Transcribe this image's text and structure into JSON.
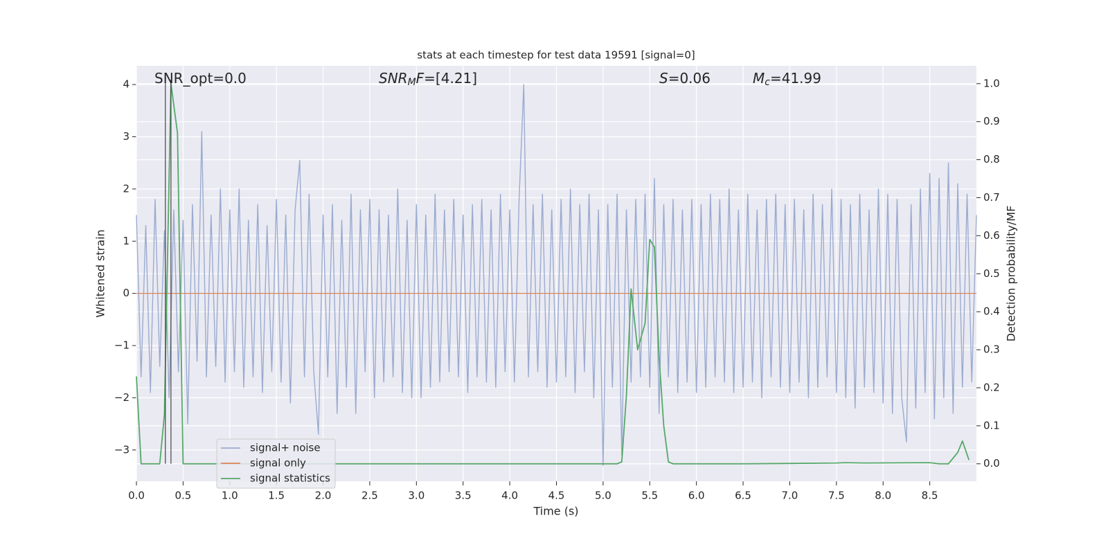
{
  "chart_data": {
    "type": "line",
    "title": "stats at each timestep for test data 19591 [signal=0]",
    "x_label": "Time (s)",
    "y_label": "Whitened strain",
    "y2_label": "Detection probability/MF",
    "annotations": [
      [
        {
          "text": "SNR_opt=0.0"
        }
      ],
      [
        {
          "text": "SNR",
          "italic": true
        },
        {
          "text": "M",
          "italic": true,
          "sub": true
        },
        {
          "text": "F",
          "italic": true
        },
        {
          "text": "=[4.21]"
        }
      ],
      [
        {
          "text": "S",
          "italic": true
        },
        {
          "text": "=0.06"
        }
      ],
      [
        {
          "text": "M",
          "italic": true
        },
        {
          "text": "c",
          "italic": true,
          "sub": true
        },
        {
          "text": "=41.99"
        }
      ]
    ],
    "vlines": [
      0.31,
      0.37
    ],
    "vline_color": "#444444",
    "xlim": [
      0,
      9.0
    ],
    "ylim": [
      -3.6,
      4.36
    ],
    "y2lim": [
      -0.046,
      1.047
    ],
    "xticks": [
      {
        "value": 0,
        "label": "0.0"
      },
      0.5,
      {
        "value": 1,
        "label": "1.0"
      },
      1.5,
      {
        "value": 2,
        "label": "2.0"
      },
      2.5,
      {
        "value": 3,
        "label": "3.0"
      },
      3.5,
      {
        "value": 4,
        "label": "4.0"
      },
      4.5,
      {
        "value": 5,
        "label": "5.0"
      },
      5.5,
      {
        "value": 6,
        "label": "6.0"
      },
      6.5,
      {
        "value": 7,
        "label": "7.0"
      },
      7.5,
      {
        "value": 8,
        "label": "8.0"
      },
      8.5
    ],
    "yticks": [
      {
        "value": -3,
        "label": "−3"
      },
      {
        "value": -2,
        "label": "−2"
      },
      {
        "value": -1,
        "label": "−1"
      },
      0,
      1,
      2,
      3,
      4
    ],
    "y2ticks": [
      {
        "value": 0,
        "label": "0.0"
      },
      0.1,
      0.2,
      0.3,
      0.4,
      0.5,
      0.6,
      0.7,
      0.8,
      0.9,
      {
        "value": 1,
        "label": "1.0"
      }
    ],
    "grid": true,
    "legend": "lower left",
    "series": [
      {
        "name": "signal+ noise",
        "color": "#9aabd0",
        "axis": "y",
        "x": [
          0,
          0.05,
          0.1,
          0.15,
          0.2,
          0.25,
          0.3,
          0.35,
          0.4,
          0.45,
          0.5,
          0.55,
          0.6,
          0.65,
          0.7,
          0.75,
          0.8,
          0.85,
          0.9,
          0.95,
          1,
          1.05,
          1.1,
          1.15,
          1.2,
          1.25,
          1.3,
          1.35,
          1.4,
          1.45,
          1.5,
          1.55,
          1.6,
          1.65,
          1.7,
          1.75,
          1.8,
          1.85,
          1.9,
          1.95,
          2,
          2.05,
          2.1,
          2.15,
          2.2,
          2.25,
          2.3,
          2.35,
          2.4,
          2.45,
          2.5,
          2.55,
          2.6,
          2.65,
          2.7,
          2.75,
          2.8,
          2.85,
          2.9,
          2.95,
          3,
          3.05,
          3.1,
          3.15,
          3.2,
          3.25,
          3.3,
          3.35,
          3.4,
          3.45,
          3.5,
          3.55,
          3.6,
          3.65,
          3.7,
          3.75,
          3.8,
          3.85,
          3.9,
          3.95,
          4,
          4.05,
          4.1,
          4.15,
          4.2,
          4.25,
          4.3,
          4.35,
          4.4,
          4.45,
          4.5,
          4.55,
          4.6,
          4.65,
          4.7,
          4.75,
          4.8,
          4.85,
          4.9,
          4.95,
          5,
          5.05,
          5.1,
          5.15,
          5.2,
          5.25,
          5.3,
          5.35,
          5.4,
          5.45,
          5.5,
          5.55,
          5.6,
          5.65,
          5.7,
          5.75,
          5.8,
          5.85,
          5.9,
          5.95,
          6,
          6.05,
          6.1,
          6.15,
          6.2,
          6.25,
          6.3,
          6.35,
          6.4,
          6.45,
          6.5,
          6.55,
          6.6,
          6.65,
          6.7,
          6.75,
          6.8,
          6.85,
          6.9,
          6.95,
          7,
          7.05,
          7.1,
          7.15,
          7.2,
          7.25,
          7.3,
          7.35,
          7.4,
          7.45,
          7.5,
          7.55,
          7.6,
          7.65,
          7.7,
          7.75,
          7.8,
          7.85,
          7.9,
          7.95,
          8,
          8.05,
          8.1,
          8.15,
          8.2,
          8.25,
          8.3,
          8.35,
          8.4,
          8.45,
          8.5,
          8.55,
          8.6,
          8.65,
          8.7,
          8.75,
          8.8,
          8.85,
          8.9,
          8.95,
          9
        ],
        "values": [
          1.5,
          -1.6,
          1.3,
          -1.9,
          1.8,
          -1.4,
          1.2,
          -2.0,
          1.6,
          -1.5,
          1.4,
          -2.5,
          1.7,
          -1.3,
          3.1,
          -1.6,
          1.5,
          -1.4,
          2.0,
          -1.7,
          1.6,
          -1.5,
          2.0,
          -1.8,
          1.4,
          -1.6,
          1.7,
          -1.9,
          1.3,
          -1.5,
          1.8,
          -1.7,
          1.5,
          -2.1,
          1.6,
          2.55,
          -1.6,
          1.9,
          -1.5,
          -2.7,
          1.5,
          -1.6,
          1.7,
          -2.3,
          1.4,
          -1.8,
          1.9,
          -2.3,
          1.6,
          -1.5,
          1.8,
          -2.0,
          1.6,
          -1.7,
          1.5,
          -1.6,
          2.0,
          -1.9,
          1.4,
          -2.0,
          1.7,
          -2.0,
          1.5,
          -1.8,
          1.9,
          -1.7,
          1.6,
          -1.5,
          1.8,
          -1.6,
          1.5,
          -1.9,
          1.7,
          -1.6,
          1.8,
          -1.7,
          1.6,
          -1.8,
          1.9,
          -1.5,
          1.6,
          -1.7,
          1.8,
          4.0,
          -1.6,
          1.7,
          -1.5,
          1.9,
          -1.8,
          1.6,
          -1.7,
          1.8,
          -1.6,
          2.0,
          -1.9,
          1.7,
          -1.5,
          1.9,
          -2.0,
          1.6,
          -3.3,
          1.7,
          -1.8,
          1.9,
          -3.1,
          1.6,
          -1.7,
          1.8,
          -1.6,
          1.9,
          -1.8,
          2.2,
          -2.3,
          1.7,
          -1.6,
          1.8,
          -1.9,
          1.6,
          -1.7,
          1.8,
          -1.9,
          1.7,
          -1.8,
          1.9,
          -1.6,
          1.8,
          -1.7,
          2.0,
          -1.9,
          1.6,
          -1.8,
          1.9,
          -1.7,
          1.6,
          -2.0,
          1.8,
          -1.6,
          1.9,
          -1.8,
          1.7,
          -1.9,
          1.8,
          -1.7,
          1.6,
          -2.0,
          1.9,
          -1.8,
          1.7,
          -1.6,
          2.0,
          -1.9,
          1.8,
          -2.0,
          1.7,
          -2.2,
          1.9,
          -1.8,
          1.6,
          -1.9,
          2.0,
          -2.1,
          1.9,
          -2.3,
          1.8,
          -2.0,
          -2.85,
          1.7,
          -2.2,
          2.0,
          -1.9,
          2.3,
          -2.4,
          2.2,
          -2.0,
          2.5,
          -2.3,
          2.1,
          -1.8,
          1.9,
          -1.7,
          1.5
        ]
      },
      {
        "name": "signal only",
        "color": "#dd8452",
        "axis": "y",
        "x": [
          0,
          9.0
        ],
        "values": [
          0,
          0
        ]
      },
      {
        "name": "signal statistics",
        "color": "#55a868",
        "axis": "y2",
        "x": [
          0,
          0.05,
          0.1,
          0.25,
          0.3,
          0.37,
          0.44,
          0.5,
          1.0,
          2.0,
          3.0,
          4.0,
          5.0,
          5.15,
          5.2,
          5.25,
          5.3,
          5.37,
          5.45,
          5.5,
          5.55,
          5.6,
          5.65,
          5.7,
          5.75,
          6.5,
          7.5,
          7.6,
          7.8,
          8.5,
          8.6,
          8.7,
          8.8,
          8.85,
          8.92
        ],
        "values": [
          0.23,
          0.0,
          0.0,
          0.0,
          0.13,
          1.0,
          0.87,
          0.0,
          0.0,
          0.0,
          0.0,
          0.0,
          0.0,
          0.0,
          0.005,
          0.18,
          0.46,
          0.3,
          0.37,
          0.59,
          0.57,
          0.28,
          0.1,
          0.005,
          0.0,
          0.0,
          0.002,
          0.003,
          0.002,
          0.003,
          0.0,
          0.0,
          0.03,
          0.06,
          0.01
        ]
      }
    ]
  }
}
